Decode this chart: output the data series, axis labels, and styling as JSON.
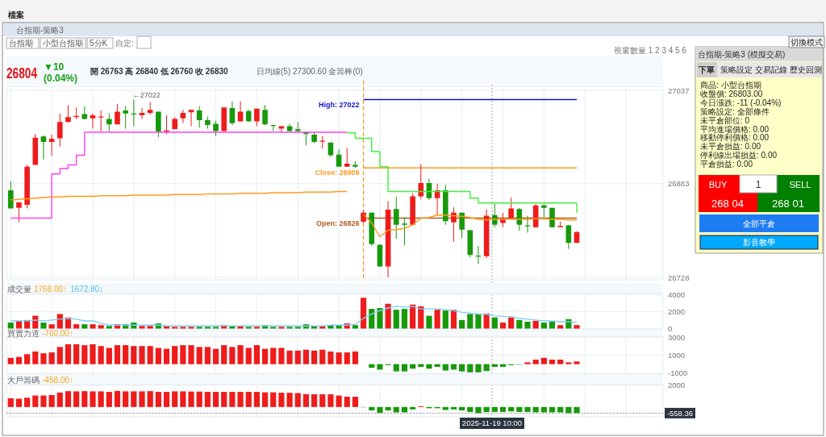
{
  "chart_data": [
    {
      "type": "candlestick",
      "title": "台指期-策略3",
      "categories": [
        null,
        null,
        null,
        null,
        null,
        null,
        null,
        null,
        null,
        null,
        null,
        null,
        null,
        null,
        null,
        null,
        null,
        null,
        null,
        null,
        null,
        null,
        null,
        null,
        null,
        null,
        null,
        null,
        null,
        null,
        null,
        null,
        null,
        null,
        null,
        null,
        null,
        null,
        null,
        null,
        null,
        null,
        null,
        null,
        null,
        null,
        null,
        null,
        null,
        null,
        null,
        null,
        null,
        null,
        null,
        null,
        null,
        null,
        null,
        null,
        null,
        null,
        null,
        null,
        null,
        null,
        null,
        null,
        null,
        null,
        null,
        null,
        null,
        null,
        null,
        null,
        null,
        null,
        null,
        null
      ],
      "ohlc": [
        [
          26872,
          26887,
          26842,
          26842
        ],
        [
          26843,
          26852,
          26820,
          26852
        ],
        [
          26848,
          26914,
          26842,
          26911
        ],
        [
          26914,
          26965,
          26914,
          26959
        ],
        [
          26961,
          26963,
          26923,
          26952
        ],
        [
          26952,
          26964,
          26929,
          26957
        ],
        [
          26958,
          26999,
          26944,
          26985
        ],
        [
          26985,
          27013,
          26984,
          26993
        ],
        [
          26993,
          27009,
          26990,
          26995
        ],
        [
          26998,
          27011,
          26989,
          26990
        ],
        [
          26991,
          26999,
          26974,
          26996
        ],
        [
          26994,
          27004,
          26969,
          26994
        ],
        [
          26990,
          26999,
          26969,
          26981
        ],
        [
          26981,
          27015,
          26981,
          27002
        ],
        [
          27004,
          27012,
          26974,
          26999
        ],
        [
          26999,
          27022,
          26978,
          26999
        ],
        [
          26996,
          27008,
          26990,
          27000
        ],
        [
          27000,
          27018,
          26997,
          27005
        ],
        [
          27002,
          27002,
          26960,
          26969
        ],
        [
          26969,
          26996,
          26965,
          26971
        ],
        [
          26973,
          26993,
          26973,
          26990
        ],
        [
          26991,
          27005,
          26983,
          27000
        ],
        [
          27001,
          27005,
          26978,
          27005
        ],
        [
          27004,
          27011,
          26976,
          26988
        ],
        [
          26988,
          26994,
          26974,
          26980
        ],
        [
          26982,
          26987,
          26962,
          26970
        ],
        [
          26970,
          27009,
          26969,
          27009
        ],
        [
          27008,
          27019,
          26980,
          26983
        ],
        [
          26986,
          27019,
          26986,
          27002
        ],
        [
          27003,
          27005,
          26985,
          26986
        ],
        [
          26986,
          27007,
          26978,
          27007
        ],
        [
          27005,
          27013,
          26980,
          26981
        ],
        [
          26980,
          26980,
          26970,
          26979
        ],
        [
          26974,
          26978,
          26969,
          26978
        ],
        [
          26978,
          26982,
          26969,
          26970
        ],
        [
          26973,
          26985,
          26967,
          26970
        ],
        [
          26968,
          26968,
          26946,
          26965
        ],
        [
          26964,
          26968,
          26950,
          26952
        ],
        [
          26954,
          26962,
          26941,
          26954
        ],
        [
          26951,
          26951,
          26927,
          26930
        ],
        [
          26931,
          26940,
          26911,
          26911
        ],
        [
          26911,
          26942,
          26911,
          26916
        ],
        [
          26914,
          26920,
          26909,
          26911
        ],
        [
          26820,
          26840,
          26818,
          26835
        ],
        [
          26835,
          26835,
          26780,
          26783
        ],
        [
          26782,
          26782,
          26746,
          26746
        ],
        [
          26746,
          26854,
          26728,
          26840
        ],
        [
          26841,
          26861,
          26792,
          26815
        ],
        [
          26817,
          26827,
          26781,
          26815
        ],
        [
          26815,
          26867,
          26813,
          26862
        ],
        [
          26862,
          26915,
          26857,
          26884
        ],
        [
          26884,
          26891,
          26856,
          26859
        ],
        [
          26859,
          26883,
          26831,
          26872
        ],
        [
          26872,
          26881,
          26815,
          26821
        ],
        [
          26819,
          26844,
          26787,
          26835
        ],
        [
          26835,
          26835,
          26793,
          26807
        ],
        [
          26806,
          26806,
          26761,
          26765
        ],
        [
          26764,
          26780,
          26750,
          26763
        ],
        [
          26763,
          26840,
          26760,
          26830
        ],
        [
          26831,
          26850,
          26811,
          26815
        ],
        [
          26818,
          26835,
          26811,
          26825
        ],
        [
          26826,
          26860,
          26826,
          26842
        ],
        [
          26841,
          26843,
          26805,
          26815
        ],
        [
          26814,
          26830,
          26802,
          26814
        ],
        [
          26811,
          26849,
          26810,
          26847
        ],
        [
          26847,
          26850,
          26827,
          26843
        ],
        [
          26843,
          26843,
          26810,
          26811
        ],
        [
          26811,
          26820,
          26811,
          26813
        ],
        [
          26814,
          26815,
          26775,
          26785
        ],
        [
          26785,
          26804,
          26785,
          26803
        ],
        null,
        null,
        null,
        null,
        null,
        null,
        null,
        null,
        null,
        null
      ],
      "colors": [
        "#17990b",
        "#ee1c1c",
        "#ee1c1c",
        "#ee1c1c",
        "#17990b",
        "#ee1c1c",
        "#ee1c1c",
        "#ee1c1c",
        "#ee1c1c",
        "#17990b",
        "#ee1c1c",
        "#ee1c1c",
        "#17990b",
        "#ee1c1c",
        "#17990b",
        "#17990b",
        "#ee1c1c",
        "#ee1c1c",
        "#17990b",
        "#ee1c1c",
        "#ee1c1c",
        "#ee1c1c",
        "#ee1c1c",
        "#17990b",
        "#17990b",
        "#17990b",
        "#ee1c1c",
        "#17990b",
        "#ee1c1c",
        "#17990b",
        "#ee1c1c",
        "#17990b",
        "#17990b",
        "#ee1c1c",
        "#17990b",
        "#17990b",
        "#17990b",
        "#17990b",
        "#ee1c1c",
        "#17990b",
        "#17990b",
        "#ee1c1c",
        "#17990b",
        "#ee1c1c",
        "#17990b",
        "#17990b",
        "#ee1c1c",
        "#17990b",
        "#17990b",
        "#ee1c1c",
        "#ee1c1c",
        "#17990b",
        "#ee1c1c",
        "#17990b",
        "#ee1c1c",
        "#17990b",
        "#17990b",
        "#17990b",
        "#ee1c1c",
        "#17990b",
        "#ee1c1c",
        "#ee1c1c",
        "#17990b",
        "#17990b",
        "#ee1c1c",
        "#17990b",
        "#17990b",
        "#ee1c1c",
        "#17990b",
        "#ee1c1c",
        null,
        null,
        null,
        null,
        null,
        null,
        null,
        null,
        null,
        null
      ],
      "series": [
        {
          "type": "step",
          "color": "#ff40f0",
          "values": [
            26826,
            26826,
            26826,
            26826,
            26826,
            26899,
            26908,
            26914,
            26930,
            26968,
            26968,
            26968,
            26968,
            26968,
            26968,
            26968,
            26968,
            26968,
            26968,
            26968,
            26968,
            26968,
            26968,
            26968,
            26968,
            26968,
            26968,
            26968,
            26968,
            26968,
            26968,
            26968,
            26968,
            26968,
            26968,
            26968,
            26968,
            26968,
            26968,
            26968,
            26968,
            26968,
            null,
            null,
            null,
            null,
            null,
            null,
            null,
            null,
            null,
            null,
            null,
            null,
            null,
            null,
            null,
            null,
            null,
            null,
            null,
            null,
            null,
            null,
            null,
            null,
            null,
            null,
            null,
            null,
            null,
            null,
            null,
            null,
            null,
            null,
            null,
            null,
            null,
            null
          ]
        },
        {
          "type": "step",
          "color": "#40f040",
          "values": [
            null,
            null,
            null,
            null,
            null,
            null,
            null,
            null,
            null,
            null,
            null,
            null,
            null,
            null,
            null,
            null,
            null,
            null,
            null,
            null,
            null,
            null,
            null,
            null,
            null,
            null,
            null,
            null,
            null,
            null,
            null,
            null,
            null,
            null,
            null,
            null,
            null,
            null,
            null,
            null,
            null,
            26967,
            26958,
            26958,
            26936,
            26911,
            26870,
            26870,
            26870,
            26870,
            26870,
            26870,
            26870,
            26870,
            26870,
            26870,
            26859,
            26851,
            26851,
            26851,
            26851,
            26851,
            26851,
            26851,
            26851,
            26851,
            26851,
            26851,
            26851,
            26835,
            null,
            null,
            null,
            null,
            null,
            null,
            null,
            null,
            null,
            null
          ]
        },
        {
          "type": "line",
          "color": "#ff9a1f",
          "values": [
            26856,
            26857,
            26858,
            26859,
            26860,
            26861,
            26861,
            26862,
            26862,
            26862,
            26862,
            26863,
            26863,
            26863,
            26863,
            26864,
            26864,
            26864,
            26864,
            26864,
            26865,
            26865,
            26865,
            26865,
            26866,
            26866,
            26866,
            26866,
            26867,
            26867,
            26867,
            26867,
            26868,
            26868,
            26868,
            26868,
            26869,
            26869,
            26869,
            26869,
            26870,
            26870,
            null,
            26832,
            26818,
            26795,
            26806,
            26807,
            26809,
            26815,
            26826,
            26827,
            26831,
            26831,
            26830,
            26829,
            26827,
            26824,
            26823,
            26824,
            26824,
            26824,
            26824,
            26824,
            26825,
            26825,
            26824,
            26824,
            26823,
            26823,
            null,
            null,
            null,
            null,
            null,
            null,
            null,
            null,
            null,
            null
          ]
        }
      ],
      "ylim": [
        26724,
        27044
      ],
      "yticks": [
        26728,
        26883,
        27037
      ],
      "grid": true,
      "ref_lines": [
        {
          "axis": "y",
          "value": 27022,
          "label": "High: 27022",
          "color": "#1010c8"
        },
        {
          "axis": "y",
          "value": 26909,
          "label": "Close: 26909",
          "color": "#ff9a1f"
        },
        {
          "axis": "y",
          "value": 26826,
          "label": "Open: 26826",
          "color": "#b05a20"
        }
      ],
      "annotations": [
        "檔案",
        "台指期",
        "小型台指期",
        "5分K",
        "自定:",
        "視窗數量 1 2 3 4 5 6",
        "26804",
        "▼10",
        "(0.04%)",
        "開 26763 高 26840 低 26760 收 26830",
        "日均線(5) 27300.60 金籌棒(0)",
        "←27022",
        "2025-11-19  10:00"
      ]
    },
    {
      "type": "bar",
      "title": "成交量",
      "categories": [
        null,
        null,
        null,
        null,
        null,
        null,
        null,
        null,
        null,
        null,
        null,
        null,
        null,
        null,
        null,
        null,
        null,
        null,
        null,
        null,
        null,
        null,
        null,
        null,
        null,
        null,
        null,
        null,
        null,
        null,
        null,
        null,
        null,
        null,
        null,
        null,
        null,
        null,
        null,
        null,
        null,
        null,
        null,
        null,
        null,
        null,
        null,
        null,
        null,
        null,
        null,
        null,
        null,
        null,
        null,
        null,
        null,
        null,
        null,
        null,
        null,
        null,
        null,
        null,
        null,
        null,
        null,
        null,
        null,
        null,
        null,
        null,
        null,
        null,
        null,
        null,
        null,
        null,
        null,
        null
      ],
      "series": [
        {
          "type": "bar",
          "values": [
            700,
            900,
            1000,
            1500,
            700,
            500,
            1700,
            1300,
            500,
            500,
            500,
            400,
            300,
            500,
            500,
            700,
            300,
            300,
            600,
            300,
            200,
            200,
            200,
            200,
            200,
            200,
            400,
            300,
            300,
            200,
            200,
            400,
            200,
            200,
            200,
            200,
            500,
            300,
            300,
            400,
            400,
            600,
            400,
            3600,
            2300,
            2400,
            2900,
            2200,
            2300,
            2800,
            2600,
            1500,
            2200,
            2100,
            2200,
            1000,
            1700,
            1700,
            1768,
            1300,
            700,
            1300,
            1000,
            800,
            900,
            700,
            800,
            400,
            1100,
            400,
            null,
            null,
            null,
            null,
            null,
            null,
            null,
            null,
            null,
            null
          ],
          "colors": [
            "#17990b",
            "#ee1c1c",
            "#ee1c1c",
            "#ee1c1c",
            "#17990b",
            "#ee1c1c",
            "#ee1c1c",
            "#ee1c1c",
            "#ee1c1c",
            "#17990b",
            "#ee1c1c",
            "#ee1c1c",
            "#17990b",
            "#ee1c1c",
            "#17990b",
            "#17990b",
            "#ee1c1c",
            "#ee1c1c",
            "#17990b",
            "#ee1c1c",
            "#ee1c1c",
            "#ee1c1c",
            "#ee1c1c",
            "#17990b",
            "#17990b",
            "#17990b",
            "#ee1c1c",
            "#17990b",
            "#ee1c1c",
            "#17990b",
            "#ee1c1c",
            "#17990b",
            "#17990b",
            "#ee1c1c",
            "#17990b",
            "#17990b",
            "#17990b",
            "#17990b",
            "#ee1c1c",
            "#17990b",
            "#17990b",
            "#ee1c1c",
            "#17990b",
            "#ee1c1c",
            "#17990b",
            "#17990b",
            "#ee1c1c",
            "#17990b",
            "#17990b",
            "#ee1c1c",
            "#ee1c1c",
            "#17990b",
            "#ee1c1c",
            "#17990b",
            "#ee1c1c",
            "#17990b",
            "#17990b",
            "#17990b",
            "#ee1c1c",
            "#17990b",
            "#ee1c1c",
            "#ee1c1c",
            "#17990b",
            "#17990b",
            "#ee1c1c",
            "#17990b",
            "#17990b",
            "#ee1c1c",
            "#17990b",
            "#ee1c1c",
            null,
            null,
            null,
            null,
            null,
            null,
            null,
            null,
            null,
            null
          ]
        },
        {
          "type": "line",
          "color": "#7fd0f5",
          "values": [
            900,
            900,
            900,
            1000,
            900,
            1000,
            1100,
            1200,
            1100,
            900,
            900,
            600,
            400,
            400,
            400,
            400,
            400,
            400,
            400,
            300,
            300,
            300,
            300,
            300,
            300,
            300,
            300,
            300,
            300,
            300,
            300,
            300,
            300,
            300,
            300,
            300,
            300,
            300,
            300,
            400,
            400,
            400,
            500,
            1200,
            1700,
            2100,
            2400,
            2600,
            2500,
            2600,
            2300,
            2300,
            2300,
            2200,
            2100,
            1900,
            1800,
            1700,
            1672.8,
            1500,
            1400,
            1400,
            1200,
            1100,
            1000,
            900,
            900,
            800,
            800,
            700,
            null,
            null,
            null,
            null,
            null,
            null,
            null,
            null,
            null,
            null
          ]
        }
      ],
      "ylim": [
        0,
        4100
      ],
      "yticks": [
        0,
        2000,
        4000
      ],
      "grid": true,
      "annotations": [
        "1768.00↑",
        "1672.80↓"
      ]
    },
    {
      "type": "bar",
      "title": "買賣力道",
      "categories": [
        null,
        null,
        null,
        null,
        null,
        null,
        null,
        null,
        null,
        null,
        null,
        null,
        null,
        null,
        null,
        null,
        null,
        null,
        null,
        null,
        null,
        null,
        null,
        null,
        null,
        null,
        null,
        null,
        null,
        null,
        null,
        null,
        null,
        null,
        null,
        null,
        null,
        null,
        null,
        null,
        null,
        null,
        null,
        null,
        null,
        null,
        null,
        null,
        null,
        null,
        null,
        null,
        null,
        null,
        null,
        null,
        null,
        null,
        null,
        null,
        null,
        null,
        null,
        null,
        null,
        null,
        null,
        null,
        null,
        null,
        null,
        null,
        null,
        null,
        null,
        null,
        null,
        null,
        null,
        null
      ],
      "series": [
        {
          "type": "bar",
          "values": [
            700,
            800,
            1100,
            1400,
            1200,
            1300,
            1900,
            2200,
            2200,
            2100,
            2200,
            2000,
            1800,
            2100,
            2100,
            2000,
            2000,
            2000,
            1800,
            1700,
            2000,
            2100,
            2100,
            1900,
            1900,
            1700,
            2100,
            1900,
            2100,
            1800,
            2100,
            1700,
            1800,
            1800,
            1500,
            1500,
            1600,
            1500,
            1600,
            1400,
            1300,
            1300,
            1400,
            null,
            -400,
            -600,
            -100,
            -800,
            -800,
            -500,
            -300,
            -500,
            -300,
            -700,
            -600,
            -800,
            -900,
            -900,
            -760,
            -300,
            -300,
            -100,
            -100,
            200,
            500,
            700,
            500,
            500,
            200,
            300,
            null,
            null,
            null,
            null,
            null,
            null,
            null,
            null,
            null,
            null
          ],
          "colors": [
            "#ee1c1c",
            "#ee1c1c",
            "#ee1c1c",
            "#ee1c1c",
            "#ee1c1c",
            "#ee1c1c",
            "#ee1c1c",
            "#ee1c1c",
            "#ee1c1c",
            "#ee1c1c",
            "#ee1c1c",
            "#ee1c1c",
            "#ee1c1c",
            "#ee1c1c",
            "#ee1c1c",
            "#ee1c1c",
            "#ee1c1c",
            "#ee1c1c",
            "#ee1c1c",
            "#ee1c1c",
            "#ee1c1c",
            "#ee1c1c",
            "#ee1c1c",
            "#ee1c1c",
            "#ee1c1c",
            "#ee1c1c",
            "#ee1c1c",
            "#ee1c1c",
            "#ee1c1c",
            "#ee1c1c",
            "#ee1c1c",
            "#ee1c1c",
            "#ee1c1c",
            "#ee1c1c",
            "#ee1c1c",
            "#ee1c1c",
            "#ee1c1c",
            "#ee1c1c",
            "#ee1c1c",
            "#ee1c1c",
            "#ee1c1c",
            "#ee1c1c",
            "#ee1c1c",
            null,
            "#17990b",
            "#17990b",
            "#17990b",
            "#17990b",
            "#17990b",
            "#17990b",
            "#17990b",
            "#17990b",
            "#17990b",
            "#17990b",
            "#17990b",
            "#17990b",
            "#17990b",
            "#17990b",
            "#17990b",
            "#17990b",
            "#17990b",
            "#17990b",
            "#9fd89a",
            "#ee1c1c",
            "#ee1c1c",
            "#ee1c1c",
            "#ee1c1c",
            "#ee1c1c",
            "#ee1c1c",
            "#ee1c1c",
            null,
            null,
            null,
            null,
            null,
            null,
            null,
            null,
            null,
            null
          ]
        }
      ],
      "ylim": [
        -1100,
        3000
      ],
      "yticks": [
        -1000,
        1000,
        3000
      ],
      "grid": true,
      "annotations": [
        "-760.00↑"
      ]
    },
    {
      "type": "bar",
      "title": "大戶籌碼",
      "categories": [
        null,
        null,
        null,
        null,
        null,
        null,
        null,
        null,
        null,
        null,
        null,
        null,
        null,
        null,
        null,
        null,
        null,
        null,
        null,
        null,
        null,
        null,
        null,
        null,
        null,
        null,
        null,
        null,
        null,
        null,
        null,
        null,
        null,
        null,
        null,
        null,
        null,
        null,
        null,
        null,
        null,
        null,
        null,
        null,
        null,
        null,
        null,
        null,
        null,
        null,
        null,
        null,
        null,
        null,
        null,
        null,
        null,
        null,
        null,
        null,
        null,
        null,
        null,
        null,
        null,
        null,
        null,
        null,
        null,
        null,
        null,
        null,
        null,
        null,
        null,
        null,
        null,
        null,
        null,
        null
      ],
      "series": [
        {
          "type": "bar",
          "values": [
            800,
            760,
            850,
            1050,
            1050,
            1090,
            1320,
            1450,
            1430,
            1450,
            1430,
            1430,
            1380,
            1470,
            1430,
            1430,
            1430,
            1450,
            1380,
            1380,
            1430,
            1430,
            1410,
            1410,
            1380,
            1380,
            1380,
            1380,
            1380,
            1380,
            1380,
            1340,
            1340,
            1300,
            1300,
            1270,
            1180,
            1160,
            1160,
            1160,
            1050,
            940,
            940,
            -40,
            -310,
            -540,
            -310,
            -490,
            -490,
            -220,
            70,
            -110,
            -110,
            -270,
            -220,
            -310,
            -450,
            -560,
            -458,
            -450,
            -450,
            -400,
            -450,
            -450,
            -490,
            -490,
            -490,
            -490,
            -560,
            -560,
            null,
            null,
            null,
            null,
            null,
            null,
            null,
            null,
            null,
            null
          ],
          "colors": [
            "#ee1c1c",
            "#ee1c1c",
            "#ee1c1c",
            "#ee1c1c",
            "#ee1c1c",
            "#ee1c1c",
            "#ee1c1c",
            "#ee1c1c",
            "#ee1c1c",
            "#ee1c1c",
            "#ee1c1c",
            "#ee1c1c",
            "#ee1c1c",
            "#ee1c1c",
            "#ee1c1c",
            "#ee1c1c",
            "#ee1c1c",
            "#ee1c1c",
            "#ee1c1c",
            "#ee1c1c",
            "#ee1c1c",
            "#ee1c1c",
            "#ee1c1c",
            "#ee1c1c",
            "#ee1c1c",
            "#ee1c1c",
            "#ee1c1c",
            "#ee1c1c",
            "#ee1c1c",
            "#ee1c1c",
            "#ee1c1c",
            "#ee1c1c",
            "#ee1c1c",
            "#ee1c1c",
            "#ee1c1c",
            "#ee1c1c",
            "#ee1c1c",
            "#ee1c1c",
            "#ee1c1c",
            "#ee1c1c",
            "#ee1c1c",
            "#ee1c1c",
            "#ee1c1c",
            "#9fd89a",
            "#17990b",
            "#17990b",
            "#17990b",
            "#17990b",
            "#17990b",
            "#17990b",
            "#ee1c1c",
            "#17990b",
            "#17990b",
            "#17990b",
            "#17990b",
            "#17990b",
            "#17990b",
            "#17990b",
            "#17990b",
            "#17990b",
            "#17990b",
            "#17990b",
            "#17990b",
            "#17990b",
            "#17990b",
            "#17990b",
            "#17990b",
            "#17990b",
            "#17990b",
            "#17990b",
            null,
            null,
            null,
            null,
            null,
            null,
            null,
            null,
            null,
            null
          ]
        }
      ],
      "ylim": [
        -900,
        2050
      ],
      "yticks": [
        -558.36,
        2000
      ],
      "grid": true,
      "annotations": [
        "-458.00↑"
      ],
      "ref_lines": [
        {
          "axis": "y",
          "value": -558.36,
          "color": "#9a9a9a",
          "line_style": "dotted"
        }
      ]
    },
    {
      "type": "other",
      "title": "台指期-策略3 (模擬交易)",
      "annotations": [
        "切換模式",
        "下單",
        "策略設定",
        "交易記錄",
        "歷史回測",
        "商品: 小型台指期",
        "收盤價: 26803.00",
        "今日漲跌: -11 (-0.04%)",
        "策略設定: 全部條件",
        "未平倉部位: 0",
        "平均進場價格: 0.00",
        "移動停利價格: 0.00",
        "未平倉損益: 0.00",
        "停利線出場損益: 0.00",
        "平倉損益: 0.00",
        "BUY",
        "1",
        "SELL",
        "268 04",
        "268 01",
        "全部平倉",
        "影音教學"
      ]
    }
  ]
}
